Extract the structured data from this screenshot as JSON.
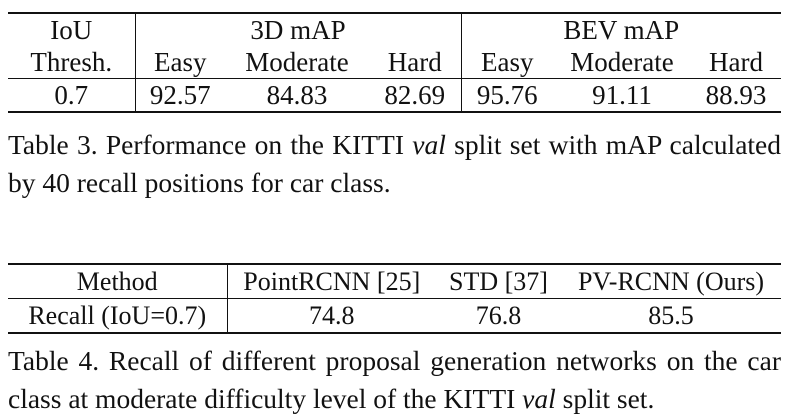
{
  "table3": {
    "head1": [
      "IoU",
      "3D mAP",
      "BEV mAP"
    ],
    "head2": [
      "Thresh.",
      "Easy",
      "Moderate",
      "Hard",
      "Easy",
      "Moderate",
      "Hard"
    ],
    "row": [
      "0.7",
      "92.57",
      "84.83",
      "82.69",
      "95.76",
      "91.11",
      "88.93"
    ]
  },
  "caption3": {
    "before": "Table 3. Performance on the KITTI ",
    "italic": "val",
    "after": " split set with mAP calculated by 40 recall positions for car class."
  },
  "table4": {
    "head": [
      "Method",
      "PointRCNN [25]",
      "STD [37]",
      "PV-RCNN (Ours)"
    ],
    "row": [
      "Recall (IoU=0.7)",
      "74.8",
      "76.8",
      "85.5"
    ]
  },
  "caption4": {
    "before": "Table 4. Recall of different proposal generation networks on the car class at moderate difficulty level of the KITTI ",
    "italic": "val",
    "after": " split set."
  }
}
